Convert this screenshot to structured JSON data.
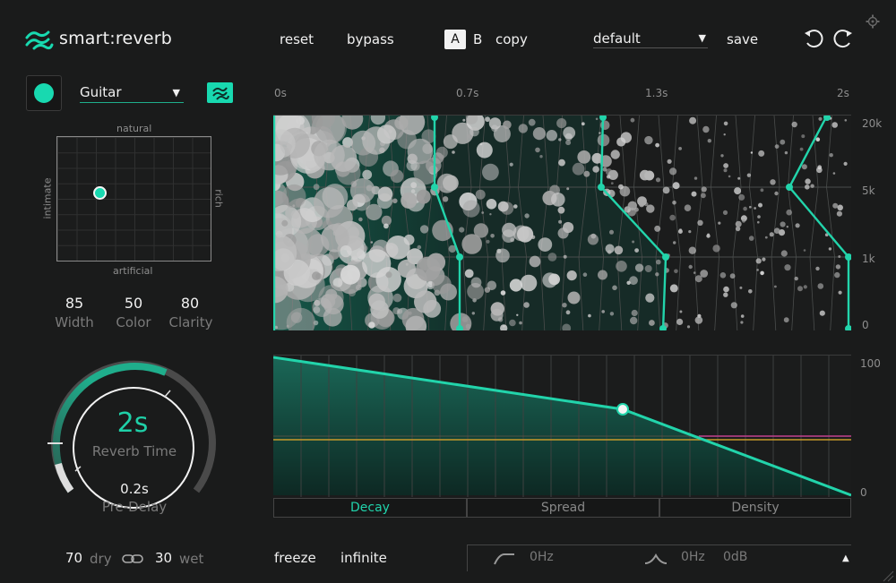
{
  "header": {
    "app_name": "smart:reverb",
    "reset_label": "reset",
    "bypass_label": "bypass",
    "a_label": "A",
    "b_label": "B",
    "copy_label": "copy",
    "preset_value": "default",
    "save_label": "save"
  },
  "source": {
    "profile": "Guitar"
  },
  "xy_pad": {
    "top_label": "natural",
    "bottom_label": "artificial",
    "left_label": "intimate",
    "right_label": "rich"
  },
  "params": [
    {
      "name": "Width",
      "value": "85"
    },
    {
      "name": "Color",
      "value": "50"
    },
    {
      "name": "Clarity",
      "value": "80"
    }
  ],
  "knob": {
    "value": "2s",
    "label": "Reverb Time",
    "predelay_value": "0.2s",
    "predelay_label": "Pre-Delay"
  },
  "mix": {
    "dry_value": "70",
    "dry_label": "dry",
    "wet_value": "30",
    "wet_label": "wet"
  },
  "time_axis": [
    "0s",
    "0.7s",
    "1.3s",
    "2s"
  ],
  "freq_axis": [
    "20k",
    "5k",
    "1k",
    "0"
  ],
  "env_axis": [
    "100",
    "0"
  ],
  "tabs": [
    {
      "label": "Decay",
      "active": true
    },
    {
      "label": "Spread",
      "active": false
    },
    {
      "label": "Density",
      "active": false
    }
  ],
  "footer": {
    "freeze_label": "freeze",
    "infinite_label": "infinite",
    "lowcut_value": "0Hz",
    "peak_freq_value": "0Hz",
    "peak_gain_value": "0dB"
  },
  "colors": {
    "accent": "#18d9b0",
    "background": "#1a1b1b",
    "magenta_line": "#c2418d",
    "orange_line": "#c89a2a"
  }
}
